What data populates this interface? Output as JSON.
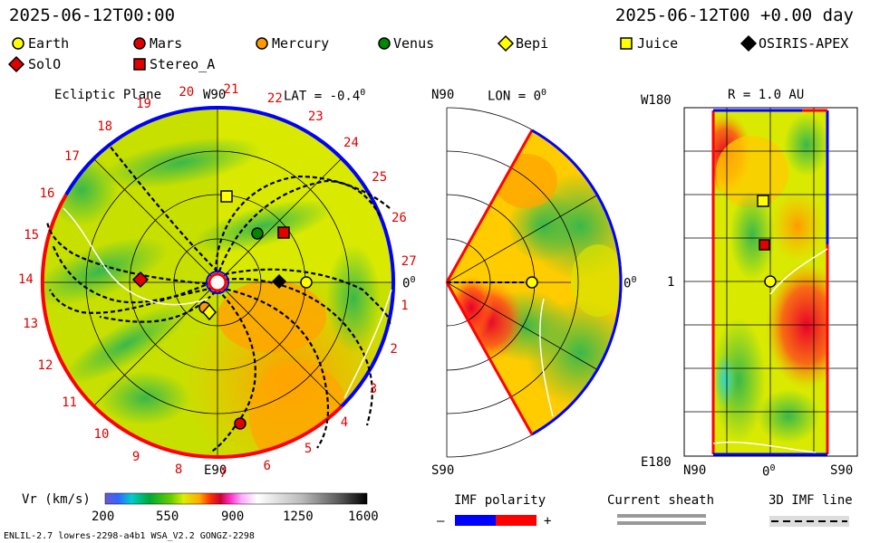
{
  "header": {
    "datetime_left": "2025-06-12T00:00",
    "datetime_right": "2025-06-12T00 +0.00 day"
  },
  "legend": [
    {
      "name": "Earth",
      "marker": "circle",
      "color": "#ffff00"
    },
    {
      "name": "Mars",
      "marker": "circle",
      "color": "#e00000"
    },
    {
      "name": "Mercury",
      "marker": "circle",
      "color": "#ff9900"
    },
    {
      "name": "Venus",
      "marker": "circle",
      "color": "#008800"
    },
    {
      "name": "Bepi",
      "marker": "diamond",
      "color": "#ffff00"
    },
    {
      "name": "Juice",
      "marker": "square",
      "color": "#ffff00"
    },
    {
      "name": "OSIRIS-APEX",
      "marker": "diamond",
      "color": "#000000"
    },
    {
      "name": "SolO",
      "marker": "diamond",
      "color": "#e00000"
    },
    {
      "name": "Stereo_A",
      "marker": "square",
      "color": "#e00000"
    }
  ],
  "ecliptic": {
    "title": "Ecliptic Plane",
    "lat_label": "LAT = -0.4",
    "deg": "0",
    "top_label": "W90",
    "bottom_label": "E90",
    "right_label": "0",
    "sectors": [
      "1",
      "2",
      "3",
      "4",
      "5",
      "6",
      "7",
      "8",
      "9",
      "10",
      "11",
      "12",
      "13",
      "14",
      "15",
      "16",
      "17",
      "18",
      "19",
      "20",
      "21",
      "22",
      "23",
      "24",
      "25",
      "26",
      "27"
    ]
  },
  "meridional": {
    "top_label": "N90",
    "lon_label": "LON = 0",
    "deg": "0",
    "bottom_label": "S90",
    "right_label": "0"
  },
  "surface": {
    "top_left": "W180",
    "title": "R = 1.0 AU",
    "left_mid": "1",
    "bottom_left": "E180",
    "x_left": "N90",
    "x_mid": "0",
    "x_right": "S90"
  },
  "colorbar": {
    "label": "Vr (km/s)",
    "ticks": [
      "200",
      "550",
      "900",
      "1250",
      "1600"
    ],
    "range": [
      200,
      1600
    ]
  },
  "imf": {
    "title": "IMF polarity",
    "minus": "–",
    "plus": "+",
    "neg_color": "#0000ff",
    "pos_color": "#ff0000"
  },
  "current_sheath": {
    "title": "Current sheath"
  },
  "imf_line": {
    "title": "3D IMF line"
  },
  "footer": {
    "model_info": "ENLIL-2.7 lowres-2298-a4b1 WSA_V2.2 GONGZ-2298"
  }
}
